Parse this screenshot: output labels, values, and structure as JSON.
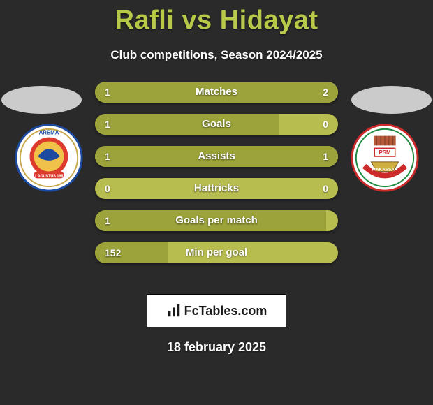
{
  "title": "Rafli vs Hidayat",
  "subtitle": "Club competitions, Season 2024/2025",
  "colors": {
    "background": "#2a2a2a",
    "title": "#b8c94a",
    "bar_track": "#b8bd50",
    "bar_fill": "#9ba33a",
    "text": "#ffffff",
    "ellipse": "#cbcbcb"
  },
  "bars": [
    {
      "label": "Matches",
      "left_val": "1",
      "right_val": "2",
      "left_pct": 33,
      "right_pct": 67
    },
    {
      "label": "Goals",
      "left_val": "1",
      "right_val": "0",
      "left_pct": 76,
      "right_pct": 0
    },
    {
      "label": "Assists",
      "left_val": "1",
      "right_val": "1",
      "left_pct": 50,
      "right_pct": 50
    },
    {
      "label": "Hattricks",
      "left_val": "0",
      "right_val": "0",
      "left_pct": 0,
      "right_pct": 0
    },
    {
      "label": "Goals per match",
      "left_val": "1",
      "right_val": "",
      "left_pct": 95,
      "right_pct": 0
    },
    {
      "label": "Min per goal",
      "left_val": "152",
      "right_val": "",
      "left_pct": 30,
      "right_pct": 0
    }
  ],
  "branding": "FcTables.com",
  "date": "18 february 2025"
}
